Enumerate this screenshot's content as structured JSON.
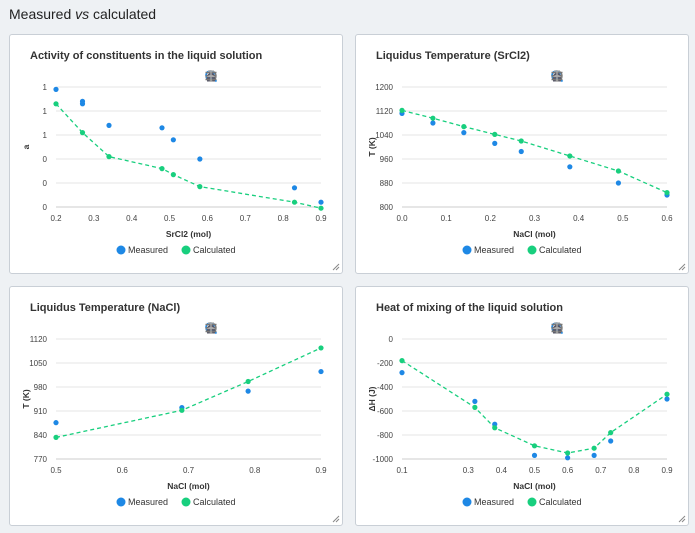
{
  "page": {
    "title_prefix": "Measured ",
    "title_vs": "vs",
    "title_suffix": " calculated"
  },
  "toolbar_icons": [
    "zoom-in-icon",
    "zoom-out-icon",
    "magnify-icon",
    "home-icon",
    "menu-icon",
    "pin-icon"
  ],
  "colors": {
    "measured": "#1e88e5",
    "calculated": "#18cf7e",
    "grid": "#e6e6e6",
    "axis_text": "#444"
  },
  "chart_data": [
    {
      "type": "scatter",
      "title": "Activity of constituents in the liquid solution",
      "xlabel": "SrCl2 (mol)",
      "ylabel": "a",
      "xlim": [
        0.2,
        0.9
      ],
      "ylim": [
        0,
        1
      ],
      "xticks": [
        "0.2",
        "0.3",
        "0.4",
        "0.5",
        "0.6",
        "0.7",
        "0.8",
        "0.9"
      ],
      "xtick_values": [
        0.2,
        0.3,
        0.4,
        0.5,
        0.6,
        0.7,
        0.8,
        0.9
      ],
      "yticks": [
        "0",
        "0",
        "0",
        "1",
        "1",
        "1"
      ],
      "ytick_values": [
        0,
        0.2,
        0.4,
        0.6,
        0.8,
        1.0
      ],
      "series": [
        {
          "name": "Measured",
          "style": "points",
          "x": [
            0.2,
            0.27,
            0.27,
            0.34,
            0.48,
            0.51,
            0.58,
            0.83,
            0.9
          ],
          "y": [
            0.98,
            0.88,
            0.86,
            0.68,
            0.66,
            0.56,
            0.4,
            0.16,
            0.04
          ]
        },
        {
          "name": "Calculated",
          "style": "line-points",
          "x": [
            0.2,
            0.27,
            0.34,
            0.48,
            0.51,
            0.58,
            0.83,
            0.9
          ],
          "y": [
            0.86,
            0.62,
            0.42,
            0.32,
            0.27,
            0.17,
            0.04,
            -0.01
          ]
        }
      ],
      "legend": [
        "Measured",
        "Calculated"
      ]
    },
    {
      "type": "scatter",
      "title": "Liquidus Temperature (SrCl2)",
      "xlabel": "NaCl (mol)",
      "ylabel": "T (K)",
      "xlim": [
        0.0,
        0.6
      ],
      "ylim": [
        800,
        1200
      ],
      "xticks": [
        "0.0",
        "0.1",
        "0.2",
        "0.3",
        "0.4",
        "0.5",
        "0.6"
      ],
      "xtick_values": [
        0,
        0.1,
        0.2,
        0.3,
        0.4,
        0.5,
        0.6
      ],
      "yticks": [
        "800",
        "880",
        "960",
        "1040",
        "1120",
        "1200"
      ],
      "ytick_values": [
        800,
        880,
        960,
        1040,
        1120,
        1200
      ],
      "series": [
        {
          "name": "Measured",
          "style": "points",
          "x": [
            0.0,
            0.07,
            0.14,
            0.21,
            0.27,
            0.38,
            0.49,
            0.6
          ],
          "y": [
            1112,
            1080,
            1048,
            1012,
            985,
            934,
            880,
            840
          ]
        },
        {
          "name": "Calculated",
          "style": "line-points",
          "x": [
            0.0,
            0.07,
            0.14,
            0.21,
            0.27,
            0.38,
            0.49,
            0.6
          ],
          "y": [
            1122,
            1096,
            1068,
            1042,
            1020,
            970,
            920,
            848
          ]
        }
      ],
      "legend": [
        "Measured",
        "Calculated"
      ]
    },
    {
      "type": "scatter",
      "title": "Liquidus Temperature (NaCl)",
      "xlabel": "NaCl (mol)",
      "ylabel": "T (K)",
      "xlim": [
        0.5,
        0.9
      ],
      "ylim": [
        770,
        1120
      ],
      "xticks": [
        "0.5",
        "0.6",
        "0.7",
        "0.8",
        "0.9"
      ],
      "xtick_values": [
        0.5,
        0.6,
        0.7,
        0.8,
        0.9
      ],
      "yticks": [
        "770",
        "840",
        "910",
        "980",
        "1050",
        "1120"
      ],
      "ytick_values": [
        770,
        840,
        910,
        980,
        1050,
        1120
      ],
      "series": [
        {
          "name": "Measured",
          "style": "points",
          "x": [
            0.5,
            0.69,
            0.79,
            0.9
          ],
          "y": [
            876,
            920,
            968,
            1025
          ]
        },
        {
          "name": "Calculated",
          "style": "line-points",
          "x": [
            0.5,
            0.69,
            0.79,
            0.9
          ],
          "y": [
            833,
            912,
            996,
            1094
          ]
        }
      ],
      "legend": [
        "Measured",
        "Calculated"
      ]
    },
    {
      "type": "scatter",
      "title": "Heat of mixing of the liquid solution",
      "xlabel": "NaCl (mol)",
      "ylabel": "ΔH (J)",
      "xlim": [
        0.1,
        0.9
      ],
      "ylim": [
        -1000,
        0
      ],
      "xticks": [
        "0.1",
        "0.3",
        "0.4",
        "0.5",
        "0.6",
        "0.7",
        "0.8",
        "0.9"
      ],
      "xtick_values": [
        0.1,
        0.3,
        0.4,
        0.5,
        0.6,
        0.7,
        0.8,
        0.9
      ],
      "yticks": [
        "-1000",
        "-800",
        "-600",
        "-400",
        "-200",
        "0"
      ],
      "ytick_values": [
        -1000,
        -800,
        -600,
        -400,
        -200,
        0
      ],
      "series": [
        {
          "name": "Measured",
          "style": "points",
          "x": [
            0.1,
            0.32,
            0.38,
            0.5,
            0.6,
            0.68,
            0.73,
            0.9
          ],
          "y": [
            -280,
            -520,
            -710,
            -970,
            -990,
            -970,
            -850,
            -500
          ]
        },
        {
          "name": "Calculated",
          "style": "line-points",
          "x": [
            0.1,
            0.32,
            0.38,
            0.5,
            0.6,
            0.68,
            0.73,
            0.9
          ],
          "y": [
            -180,
            -570,
            -740,
            -890,
            -950,
            -910,
            -780,
            -460
          ]
        }
      ],
      "legend": [
        "Measured",
        "Calculated"
      ]
    }
  ]
}
